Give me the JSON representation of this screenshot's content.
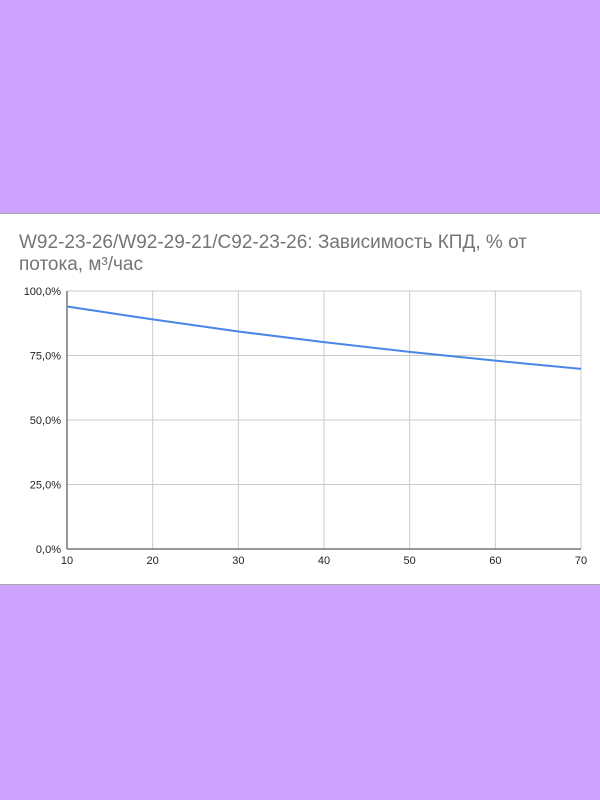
{
  "chart_data": {
    "type": "line",
    "title": "W92-23-26/W92-29-21/C92-23-26: Зависимость КПД, % от потока, м³/час",
    "xlabel": "",
    "ylabel": "",
    "xlim": [
      10,
      70
    ],
    "ylim": [
      0,
      100
    ],
    "x_ticks": [
      "10",
      "20",
      "30",
      "40",
      "50",
      "60",
      "70"
    ],
    "x_tick_values": [
      10,
      20,
      30,
      40,
      50,
      60,
      70
    ],
    "y_ticks": [
      "0,0%",
      "25,0%",
      "50,0%",
      "75,0%",
      "100,0%"
    ],
    "y_tick_values": [
      0,
      25,
      50,
      75,
      100
    ],
    "grid": true,
    "legend": "none",
    "series": [
      {
        "color": "#4a86e8",
        "x": [
          10,
          20,
          30,
          40,
          50,
          60,
          70
        ],
        "y": [
          94,
          89,
          84.3,
          80.2,
          76.4,
          73,
          69.8
        ]
      }
    ]
  }
}
